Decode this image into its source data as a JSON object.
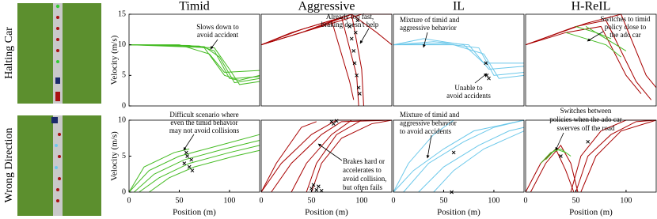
{
  "figure": {
    "row_labels": [
      "Halting Car",
      "Wrong Direction"
    ]
  },
  "chart_data": [
    {
      "type": "line",
      "title": "Timid",
      "ylabel": "Velocity (m/s)",
      "xlim": [
        0,
        130
      ],
      "ylim": [
        0,
        15
      ],
      "yticks": [
        0,
        5,
        10,
        15
      ],
      "annotations": [
        [
          "Slows down to",
          "avoid accident"
        ]
      ],
      "series": [
        {
          "color": "#44bb22",
          "x": [
            0,
            60,
            75,
            95,
            105,
            130
          ],
          "values": [
            10,
            9.9,
            9.5,
            5,
            4.5,
            4.8
          ]
        },
        {
          "color": "#44bb22",
          "x": [
            0,
            70,
            85,
            100,
            110,
            130
          ],
          "values": [
            10,
            9.8,
            9,
            4.5,
            4.2,
            5
          ]
        },
        {
          "color": "#44bb22",
          "x": [
            0,
            75,
            90,
            105,
            130
          ],
          "values": [
            10,
            9.7,
            8,
            3.8,
            4.5
          ]
        },
        {
          "color": "#44bb22",
          "x": [
            0,
            50,
            80,
            95,
            130
          ],
          "values": [
            10,
            10,
            8.5,
            5.5,
            5.8
          ]
        },
        {
          "color": "#44bb22",
          "x": [
            0,
            85,
            100,
            110,
            130
          ],
          "values": [
            10,
            9.5,
            6,
            3.5,
            4
          ]
        }
      ]
    },
    {
      "type": "line",
      "title": "Aggressive",
      "xlim": [
        0,
        130
      ],
      "ylim": [
        0,
        15
      ],
      "annotations": [
        [
          "Already too fast,",
          "braking doesn't help"
        ]
      ],
      "series": [
        {
          "color": "#a80000",
          "x": [
            0,
            40,
            80,
            95,
            97
          ],
          "values": [
            10,
            12,
            14.5,
            5,
            0
          ]
        },
        {
          "color": "#a80000",
          "x": [
            0,
            50,
            90,
            100,
            102
          ],
          "values": [
            10,
            12.5,
            15,
            6,
            0
          ]
        },
        {
          "color": "#a80000",
          "x": [
            0,
            30,
            70,
            88,
            92
          ],
          "values": [
            10,
            12,
            14,
            4,
            1
          ]
        },
        {
          "color": "#a80000",
          "x": [
            0,
            60,
            100,
            130
          ],
          "values": [
            10,
            13,
            15,
            15
          ]
        },
        {
          "color": "#a80000",
          "x": [
            0,
            40,
            90,
            115,
            130
          ],
          "values": [
            10,
            12.5,
            15,
            12,
            10
          ]
        }
      ],
      "crashes": {
        "x": [
          88,
          90,
          92,
          93,
          95,
          97,
          98,
          94,
          96
        ],
        "values": [
          13,
          11,
          9,
          7,
          5,
          3,
          2,
          12,
          14
        ]
      }
    },
    {
      "type": "line",
      "title": "IL",
      "xlim": [
        0,
        130
      ],
      "ylim": [
        0,
        15
      ],
      "annotations": [
        [
          "Mixture of timid and",
          "aggressive behavior"
        ],
        [
          "Unable to",
          "avoid accidents"
        ]
      ],
      "series": [
        {
          "color": "#6cc8ea",
          "x": [
            0,
            40,
            75,
            95,
            130
          ],
          "values": [
            10,
            10.5,
            10,
            6,
            6.5
          ]
        },
        {
          "color": "#6cc8ea",
          "x": [
            0,
            50,
            85,
            100,
            130
          ],
          "values": [
            10,
            10.2,
            9.5,
            5,
            5.5
          ]
        },
        {
          "color": "#6cc8ea",
          "x": [
            0,
            60,
            90,
            105,
            130
          ],
          "values": [
            10,
            10,
            8.5,
            4.5,
            5
          ]
        },
        {
          "color": "#6cc8ea",
          "x": [
            0,
            30,
            70,
            90,
            130
          ],
          "values": [
            10,
            11,
            10,
            7,
            7
          ]
        }
      ],
      "crashes": {
        "x": [
          92,
          95,
          93
        ],
        "values": [
          7,
          4.5,
          5
        ]
      }
    },
    {
      "type": "line",
      "title": "H-ReIL",
      "xlim": [
        0,
        130
      ],
      "ylim": [
        0,
        15
      ],
      "annotations": [
        [
          "Switches to timid",
          "policy close to",
          "the ado car"
        ]
      ],
      "series": [
        {
          "color": "#a80000",
          "x": [
            0,
            40,
            75,
            100,
            115
          ],
          "values": [
            10,
            12,
            13,
            5,
            2
          ]
        },
        {
          "color": "#a80000",
          "x": [
            0,
            50,
            80,
            110,
            125
          ],
          "values": [
            10,
            13,
            14,
            4,
            1
          ]
        },
        {
          "color": "#a80000",
          "x": [
            0,
            60,
            95,
            120,
            130
          ],
          "values": [
            10,
            13.5,
            15,
            5,
            3
          ]
        },
        {
          "color": "#44bb22",
          "x": [
            40,
            60,
            80,
            95
          ],
          "values": [
            12,
            11,
            10,
            8
          ]
        },
        {
          "color": "#44bb22",
          "x": [
            50,
            70,
            85
          ],
          "values": [
            13,
            12,
            11
          ]
        },
        {
          "color": "#44bb22",
          "x": [
            60,
            80,
            100
          ],
          "values": [
            13,
            11,
            9
          ]
        }
      ]
    },
    {
      "type": "line",
      "ylabel": "Velocity (m/s)",
      "xlabel": "Position (m)",
      "xlim": [
        0,
        130
      ],
      "ylim": [
        0,
        10
      ],
      "xticks": [
        0,
        50,
        100
      ],
      "yticks": [
        0,
        5,
        10
      ],
      "annotations": [
        [
          "Difficult scenario where",
          "even the timid behavior",
          "may not avoid collisions"
        ]
      ],
      "series": [
        {
          "color": "#44bb22",
          "x": [
            0,
            20,
            50,
            90,
            130
          ],
          "values": [
            0,
            3,
            5,
            6.5,
            8
          ]
        },
        {
          "color": "#44bb22",
          "x": [
            5,
            25,
            55,
            95,
            130
          ],
          "values": [
            0,
            2.5,
            4.5,
            6,
            7.2
          ]
        },
        {
          "color": "#44bb22",
          "x": [
            10,
            30,
            60,
            100,
            130
          ],
          "values": [
            0,
            2,
            4,
            5.5,
            6.5
          ]
        },
        {
          "color": "#44bb22",
          "x": [
            20,
            40,
            65,
            105,
            130
          ],
          "values": [
            0,
            2,
            3.5,
            5,
            5.8
          ]
        },
        {
          "color": "#44bb22",
          "x": [
            0,
            15,
            45,
            60
          ],
          "values": [
            0,
            3.5,
            5.5,
            6
          ]
        }
      ],
      "crashes": {
        "x": [
          55,
          58,
          60,
          62,
          63,
          57
        ],
        "values": [
          4,
          5,
          3.5,
          4.5,
          3,
          5.5
        ]
      }
    },
    {
      "type": "line",
      "xlabel": "Position (m)",
      "xlim": [
        0,
        130
      ],
      "ylim": [
        0,
        10
      ],
      "xticks": [
        0,
        50,
        100
      ],
      "annotations": [
        [
          "Brakes hard or",
          "accelerates to",
          "avoid collision,",
          "but often fails"
        ]
      ],
      "series": [
        {
          "color": "#a80000",
          "x": [
            0,
            20,
            50,
            75,
            130
          ],
          "values": [
            0,
            4,
            8,
            10,
            10
          ]
        },
        {
          "color": "#a80000",
          "x": [
            10,
            30,
            60,
            80,
            130
          ],
          "values": [
            0,
            4,
            8,
            9.8,
            10
          ]
        },
        {
          "color": "#a80000",
          "x": [
            30,
            45,
            70,
            90,
            130
          ],
          "values": [
            0,
            4,
            8,
            10,
            10
          ]
        },
        {
          "color": "#a80000",
          "x": [
            45,
            55,
            75,
            100,
            130
          ],
          "values": [
            0,
            4,
            8,
            10,
            10
          ]
        },
        {
          "color": "#a80000",
          "x": [
            50,
            60,
            80,
            110,
            130
          ],
          "values": [
            0,
            4,
            7.5,
            9.5,
            10
          ]
        },
        {
          "color": "#a80000",
          "x": [
            0,
            15,
            40,
            55
          ],
          "values": [
            0,
            4,
            9,
            9.8
          ]
        }
      ],
      "crashes": {
        "x": [
          50,
          52,
          55,
          57,
          60,
          70,
          72,
          75
        ],
        "values": [
          0.5,
          1,
          0.3,
          0.8,
          0.2,
          9.8,
          9.5,
          9.9
        ]
      }
    },
    {
      "type": "line",
      "xlabel": "Position (m)",
      "xlim": [
        0,
        130
      ],
      "ylim": [
        0,
        10
      ],
      "xticks": [
        0,
        50,
        100
      ],
      "annotations": [
        [
          "Mixture of timid and",
          "aggressive behavior",
          "to avoid accidents"
        ]
      ],
      "series": [
        {
          "color": "#6cc8ea",
          "x": [
            0,
            20,
            50,
            80,
            130
          ],
          "values": [
            0,
            3,
            6,
            8.5,
            10
          ]
        },
        {
          "color": "#6cc8ea",
          "x": [
            10,
            35,
            70,
            100,
            130
          ],
          "values": [
            0,
            4,
            7,
            9,
            10
          ]
        },
        {
          "color": "#6cc8ea",
          "x": [
            25,
            50,
            85,
            115,
            130
          ],
          "values": [
            0,
            3.5,
            6.5,
            8.5,
            9
          ]
        },
        {
          "color": "#6cc8ea",
          "x": [
            40,
            60,
            90,
            130
          ],
          "values": [
            0,
            3,
            6,
            8.5
          ]
        },
        {
          "color": "#6cc8ea",
          "x": [
            0,
            15,
            40,
            60
          ],
          "values": [
            0,
            4,
            8,
            10
          ]
        }
      ],
      "crashes": {
        "x": [
          58,
          60
        ],
        "values": [
          0,
          5.5
        ]
      }
    },
    {
      "type": "line",
      "xlabel": "Position (m)",
      "xlim": [
        0,
        130
      ],
      "ylim": [
        0,
        10
      ],
      "xticks": [
        0,
        50,
        100
      ],
      "annotations": [
        [
          "Switches between",
          "policies when the ado car",
          "swerves off the road"
        ]
      ],
      "series": [
        {
          "color": "#a80000",
          "x": [
            0,
            15,
            30,
            40,
            48
          ],
          "values": [
            0,
            4,
            6,
            3,
            0
          ]
        },
        {
          "color": "#a80000",
          "x": [
            5,
            20,
            35,
            45,
            52
          ],
          "values": [
            0,
            4,
            6.5,
            4,
            0
          ]
        },
        {
          "color": "#a80000",
          "x": [
            45,
            55,
            75,
            100,
            130
          ],
          "values": [
            0,
            5,
            8.5,
            10,
            10
          ]
        },
        {
          "color": "#a80000",
          "x": [
            50,
            62,
            85,
            110,
            130
          ],
          "values": [
            0,
            5,
            8,
            9.8,
            10
          ]
        },
        {
          "color": "#a80000",
          "x": [
            55,
            70,
            95,
            130
          ],
          "values": [
            0,
            5,
            8.5,
            10
          ]
        },
        {
          "color": "#44bb22",
          "x": [
            15,
            25,
            35,
            45
          ],
          "values": [
            4,
            5.5,
            6,
            5
          ]
        },
        {
          "color": "#44bb22",
          "x": [
            20,
            30,
            40
          ],
          "values": [
            4.5,
            6,
            5.5
          ]
        }
      ],
      "crashes": {
        "x": [
          35,
          62
        ],
        "values": [
          5,
          7
        ]
      }
    }
  ]
}
